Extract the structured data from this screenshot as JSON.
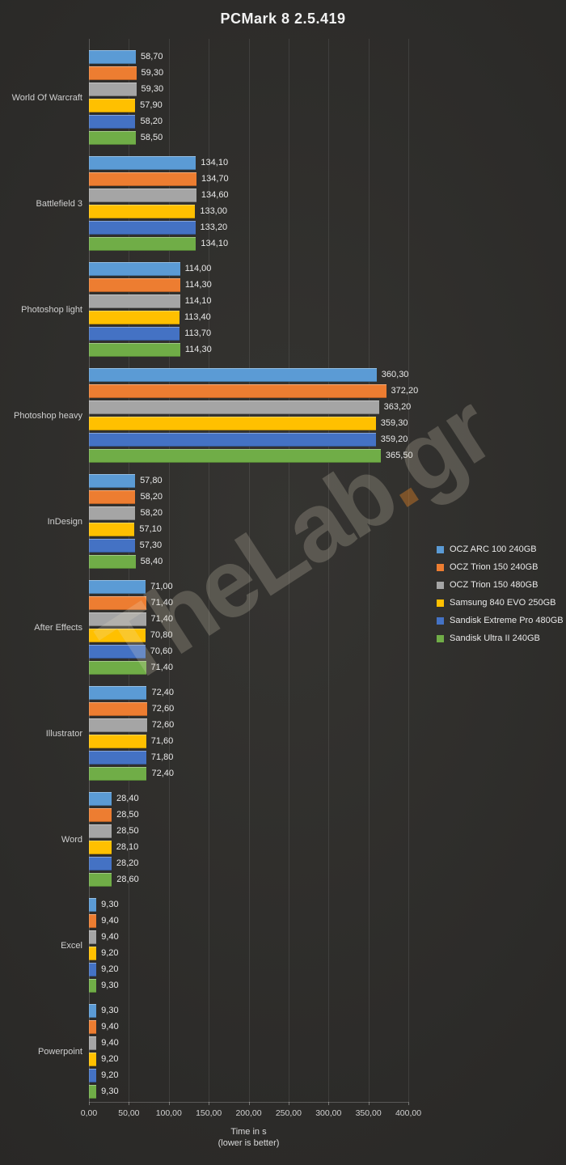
{
  "title": "PCMark  8 2.5.419",
  "watermark": {
    "part1": "TheLab",
    "dot": ".",
    "part2": "gr"
  },
  "xlabel_line1": "Time in s",
  "xlabel_line2": "(lower is better)",
  "chart_data": {
    "type": "bar",
    "orientation": "horizontal",
    "decimal_comma": true,
    "xlim": [
      0,
      400
    ],
    "grid": true,
    "legend_position": "right",
    "x_tick_values": [
      0,
      50,
      100,
      150,
      200,
      250,
      300,
      350,
      400
    ],
    "x_tick_labels": [
      "0,00",
      "50,00",
      "100,00",
      "150,00",
      "200,00",
      "250,00",
      "300,00",
      "350,00",
      "400,00"
    ],
    "categories": [
      "World Of Warcraft",
      "Battlefield 3",
      "Photoshop light",
      "Photoshop heavy",
      "InDesign",
      "After Effects",
      "Illustrator",
      "Word",
      "Excel",
      "Powerpoint"
    ],
    "series": [
      {
        "name": "OCZ ARC 100 240GB",
        "color": "#5B9BD5",
        "values": [
          58.7,
          134.1,
          114.0,
          360.3,
          57.8,
          71.0,
          72.4,
          28.4,
          9.3,
          9.3
        ]
      },
      {
        "name": "OCZ Trion 150 240GB",
        "color": "#ED7D31",
        "values": [
          59.3,
          134.7,
          114.3,
          372.2,
          58.2,
          71.4,
          72.6,
          28.5,
          9.4,
          9.4
        ]
      },
      {
        "name": "OCZ Trion 150 480GB",
        "color": "#A5A5A5",
        "values": [
          59.3,
          134.6,
          114.1,
          363.2,
          58.2,
          71.4,
          72.6,
          28.5,
          9.4,
          9.4
        ]
      },
      {
        "name": "Samsung 840 EVO 250GB",
        "color": "#FFC000",
        "values": [
          57.9,
          133.0,
          113.4,
          359.3,
          57.1,
          70.8,
          71.6,
          28.1,
          9.2,
          9.2
        ]
      },
      {
        "name": "Sandisk Extreme Pro 480GB",
        "color": "#4472C4",
        "values": [
          58.2,
          133.2,
          113.7,
          359.2,
          57.3,
          70.6,
          71.8,
          28.2,
          9.2,
          9.2
        ]
      },
      {
        "name": "Sandisk Ultra II 240GB",
        "color": "#70AD47",
        "values": [
          58.5,
          134.1,
          114.3,
          365.5,
          58.4,
          71.4,
          72.4,
          28.6,
          9.3,
          9.3
        ]
      }
    ]
  }
}
